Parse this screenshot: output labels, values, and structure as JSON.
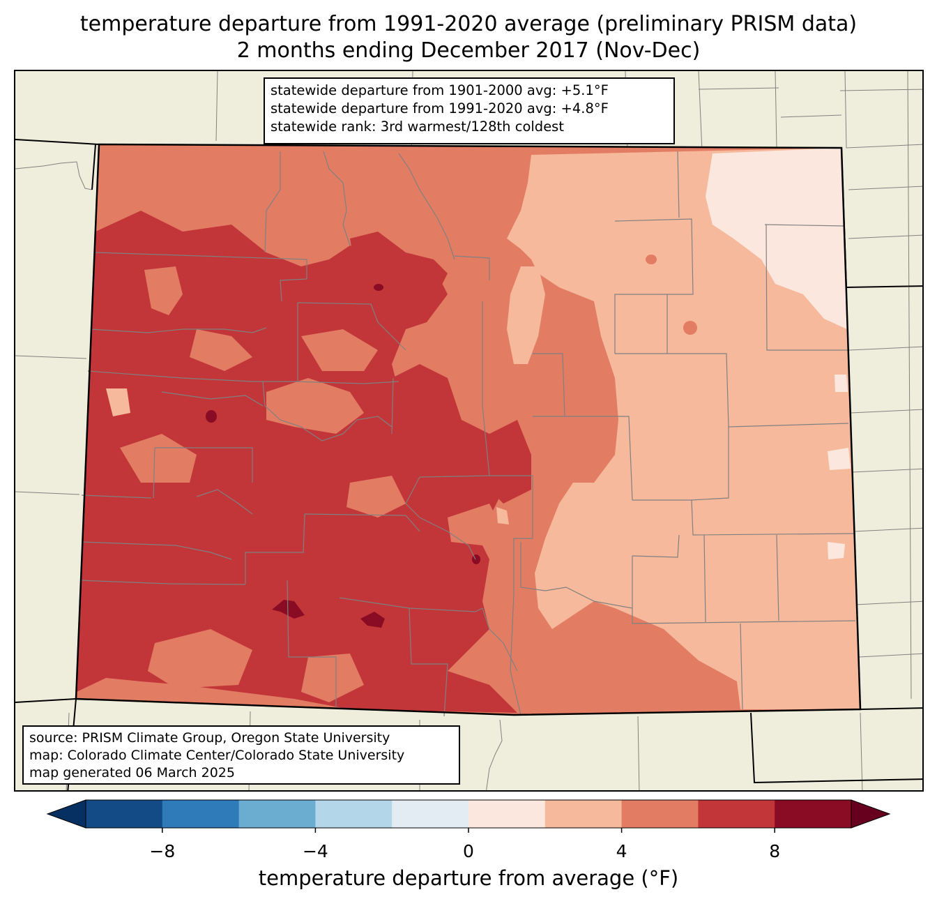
{
  "title": {
    "line1": "temperature departure from 1991-2020 average (preliminary PRISM data)",
    "line2": "2 months ending December 2017 (Nov-Dec)"
  },
  "stats": {
    "line1": "statewide departure from 1901-2000 avg: +5.1°F",
    "line2": "statewide departure from 1991-2020 avg: +4.8°F",
    "line3": "statewide rank: 3rd warmest/128th coldest"
  },
  "source": {
    "line1": "source: PRISM Climate Group, Oregon State University",
    "line2": "map: Colorado Climate Center/Colorado State University",
    "line3": "map generated 06 March 2025"
  },
  "colorbar": {
    "label": "temperature departure from average (°F)",
    "ticks": [
      "−8",
      "−4",
      "0",
      "4",
      "8"
    ],
    "tick_values": [
      -8,
      -4,
      0,
      4,
      8
    ],
    "bins": [
      -10,
      -8,
      -6,
      -4,
      -2,
      0,
      2,
      4,
      6,
      8,
      10
    ],
    "colors": [
      "#134b87",
      "#2f7ab8",
      "#6aadd1",
      "#b3d6e8",
      "#e4ecf3",
      "#fbe7dd",
      "#f6b99c",
      "#e27d64",
      "#c23639",
      "#8a0c24"
    ],
    "under_color": "#053061",
    "over_color": "#67001f"
  },
  "map_colors": {
    "background": "#efeedc",
    "state_border": "#000000",
    "county_line": "#808080"
  }
}
